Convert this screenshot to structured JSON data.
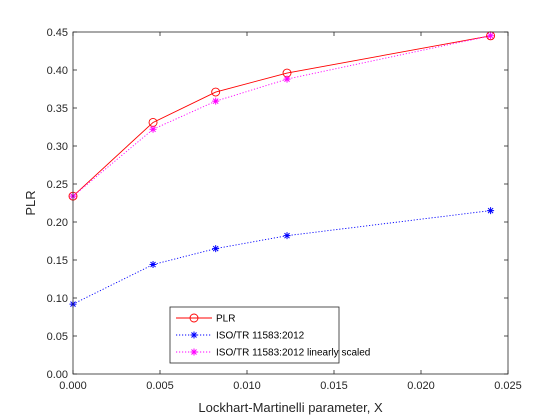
{
  "chart_data": {
    "type": "line",
    "title": "",
    "xlabel": "Lockhart-Martinelli parameter, X",
    "ylabel": "PLR",
    "xlim": [
      0,
      0.025
    ],
    "ylim": [
      0,
      0.45
    ],
    "xticks": [
      0,
      0.005,
      0.01,
      0.015,
      0.02,
      0.025
    ],
    "xtick_labels": [
      "0.000",
      "0.005",
      "0.010",
      "0.015",
      "0.020",
      "0.025"
    ],
    "yticks": [
      0,
      0.05,
      0.1,
      0.15,
      0.2,
      0.25,
      0.3,
      0.35,
      0.4,
      0.45
    ],
    "ytick_labels": [
      "0.00",
      "0.05",
      "0.10",
      "0.15",
      "0.20",
      "0.25",
      "0.30",
      "0.35",
      "0.40",
      "0.45"
    ],
    "grid": false,
    "legend_position": "bottom-center",
    "x": [
      0.0,
      0.0046,
      0.0082,
      0.0123,
      0.024
    ],
    "series": [
      {
        "name": "PLR",
        "values": [
          0.234,
          0.331,
          0.371,
          0.396,
          0.445
        ],
        "color": "#ff0000",
        "line": "solid",
        "marker": "circle"
      },
      {
        "name": "ISO/TR 11583:2012",
        "values": [
          0.092,
          0.144,
          0.165,
          0.182,
          0.215
        ],
        "color": "#0000ff",
        "line": "dotted",
        "marker": "asterisk"
      },
      {
        "name": "ISO/TR 11583:2012 linearly scaled",
        "values": [
          0.234,
          0.322,
          0.359,
          0.388,
          0.445
        ],
        "color": "#ff00ff",
        "line": "dotted",
        "marker": "asterisk"
      }
    ]
  }
}
